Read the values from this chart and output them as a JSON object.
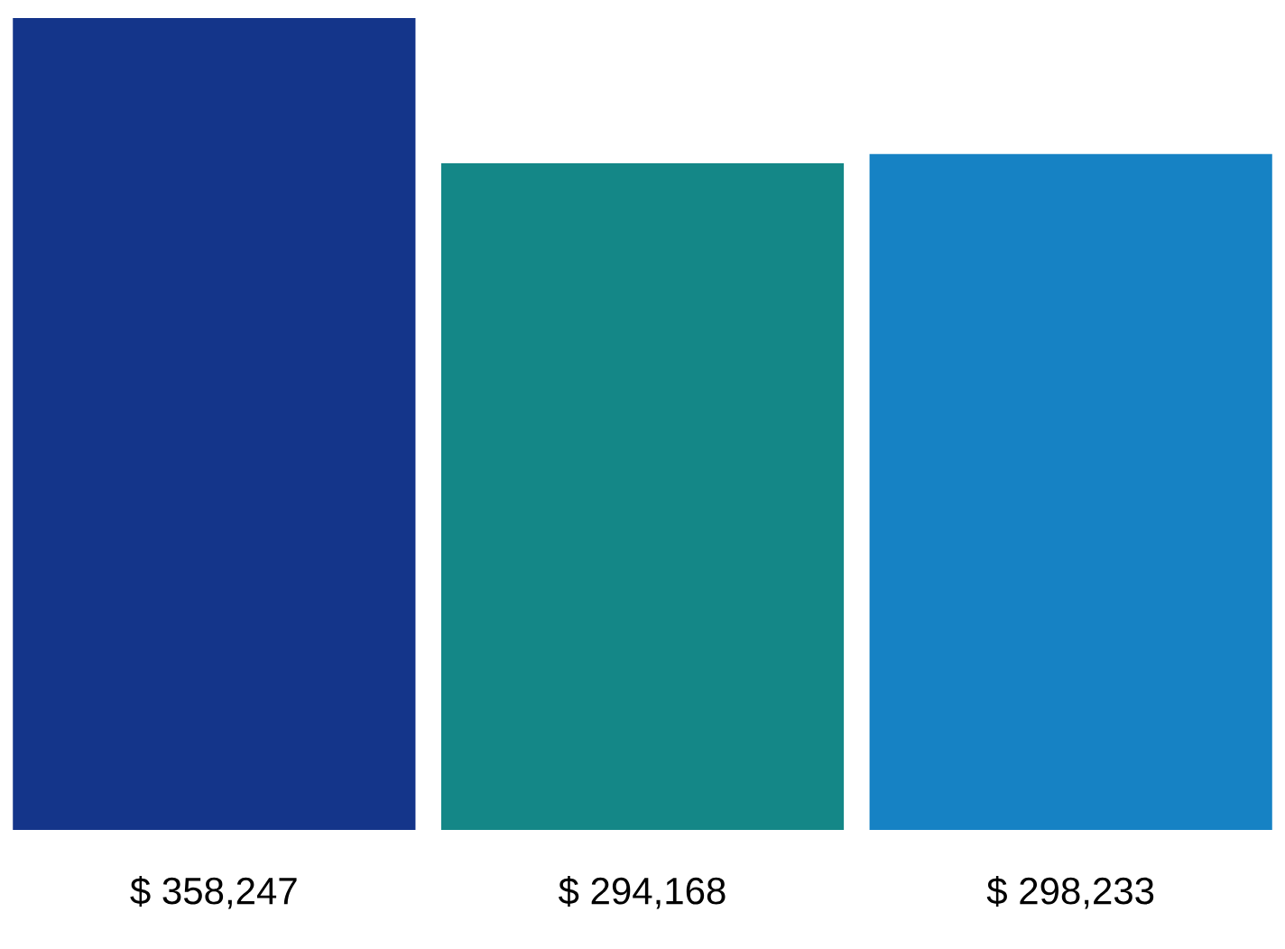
{
  "chart_data": {
    "type": "bar",
    "categories": [
      null,
      null,
      null
    ],
    "values": [
      358247,
      294168,
      298233
    ],
    "colors": [
      "#14358a",
      "#148787",
      "#1682c4"
    ],
    "value_labels": [
      "$ 358,247",
      "$ 294,168",
      "$ 298,233"
    ]
  }
}
